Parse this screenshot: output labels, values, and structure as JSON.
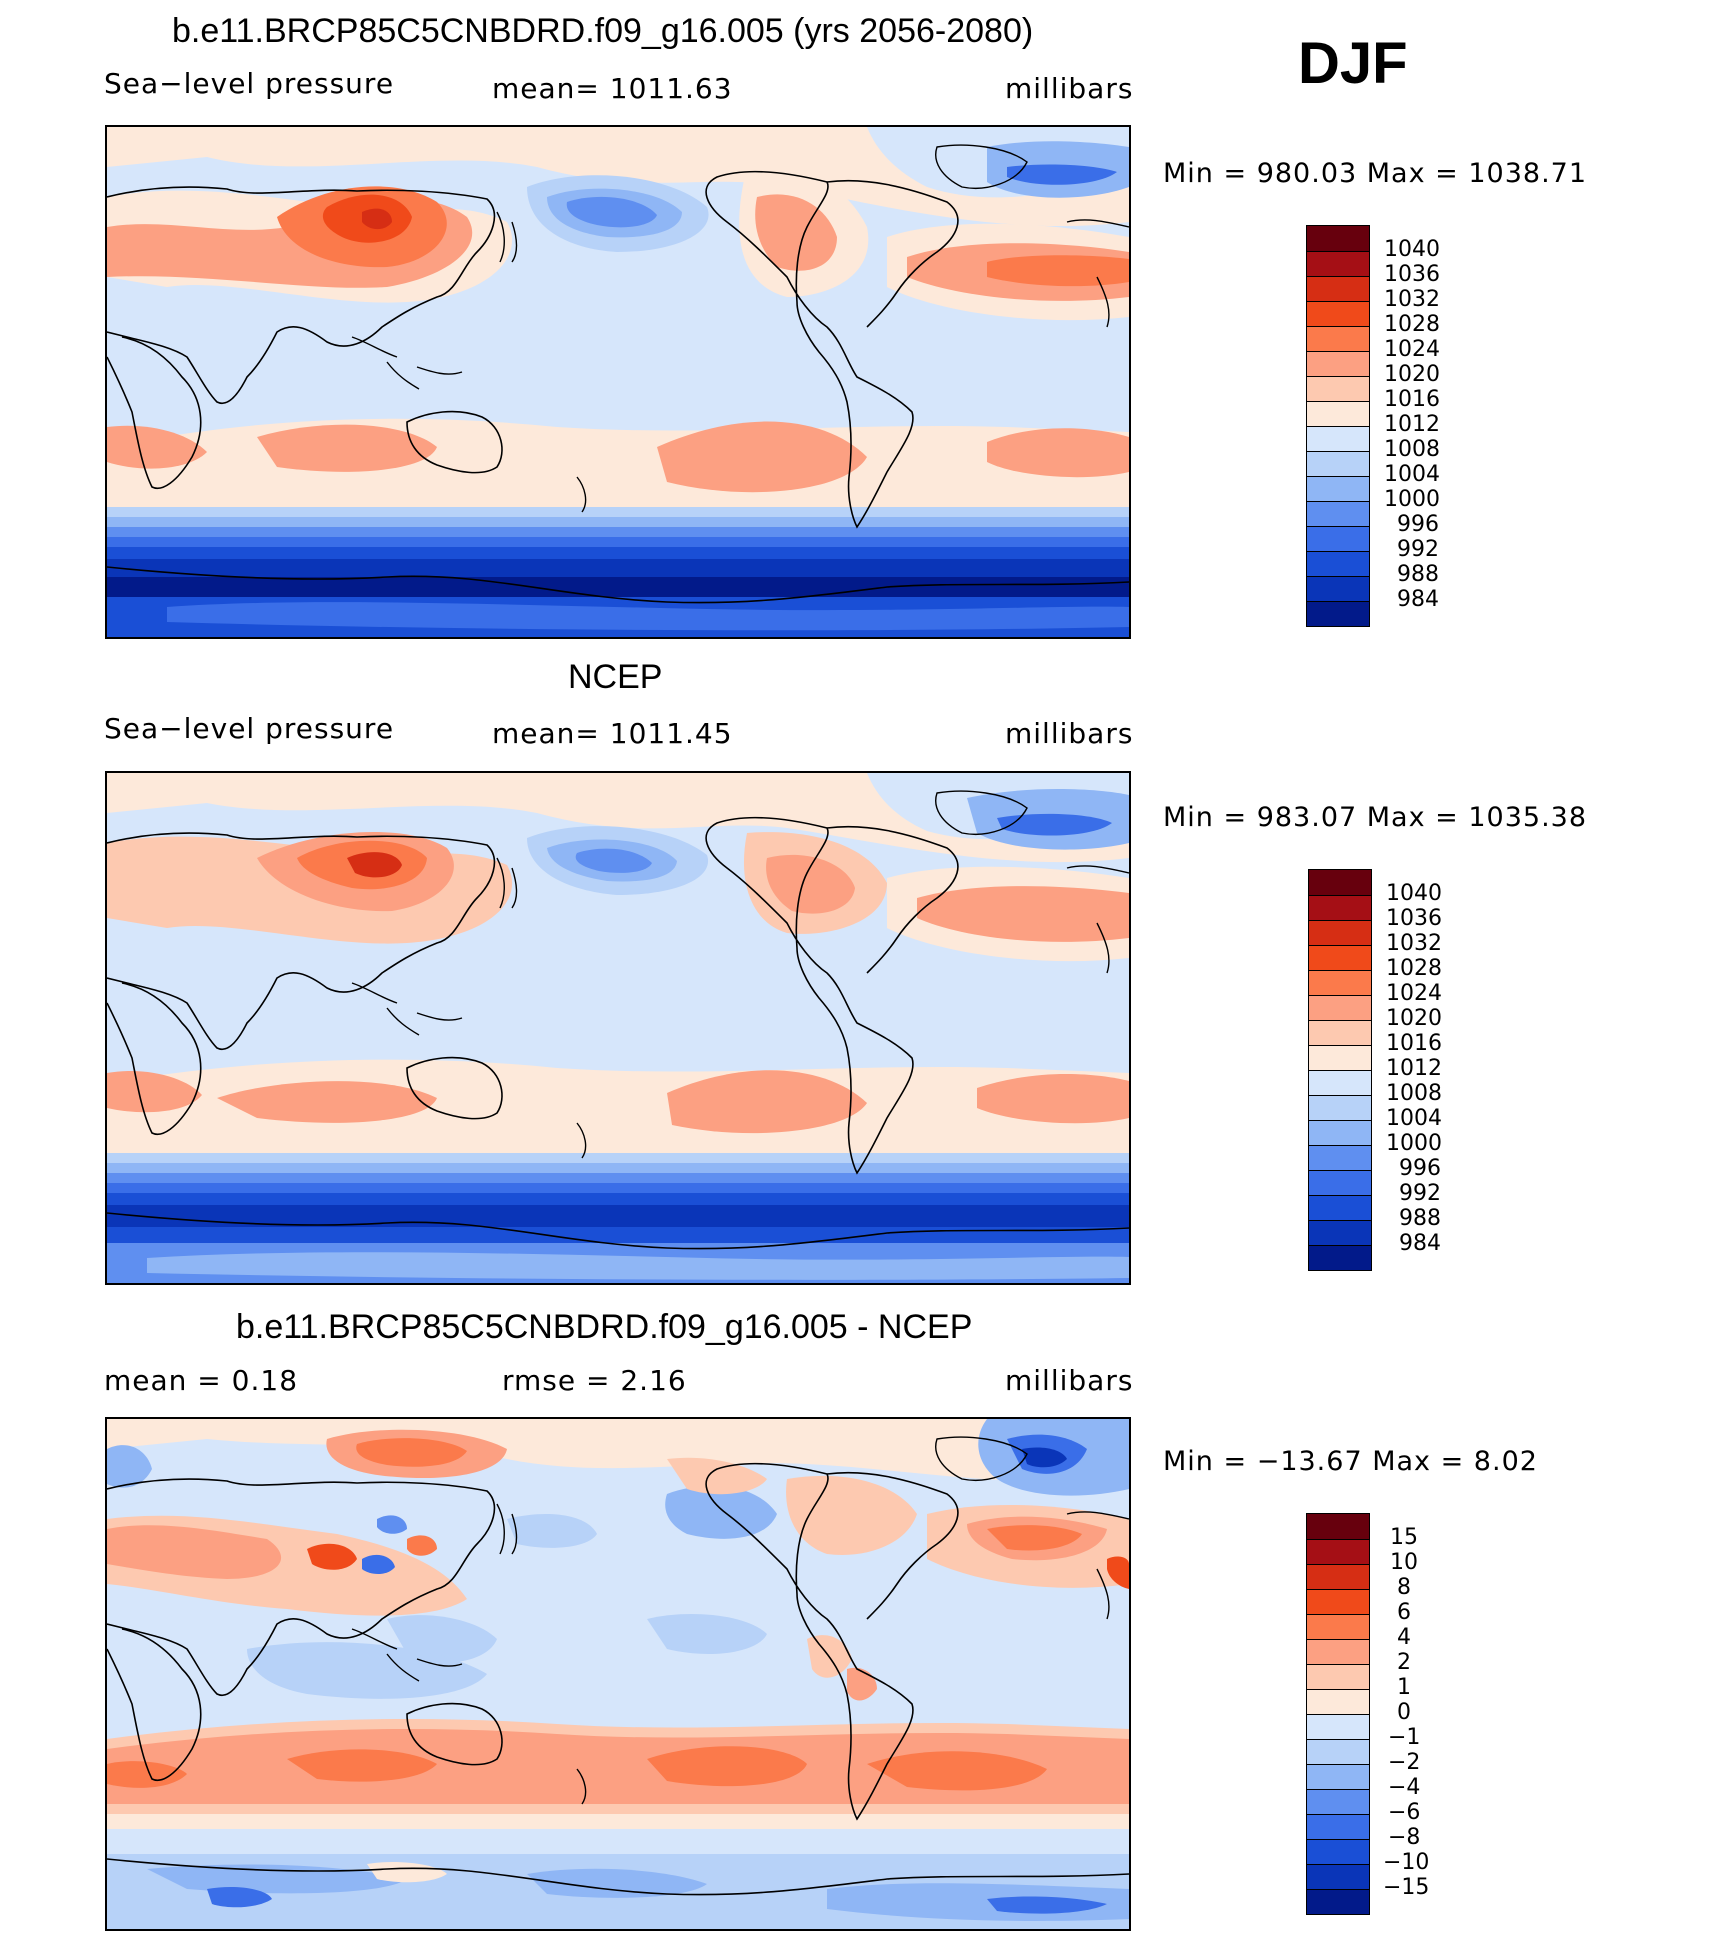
{
  "season": "DJF",
  "panels": [
    {
      "title": "b.e11.BRCP85C5CNBDRD.f09_g16.005 (yrs 2056-2080)",
      "left_label": "Sea−level pressure",
      "mid_label": "mean=  1011.63",
      "right_label": "millibars",
      "minmax": "Min  =  980.03  Max  =  1038.71",
      "levels": [
        "1040",
        "1036",
        "1032",
        "1028",
        "1024",
        "1020",
        "1016",
        "1012",
        "1008",
        "1004",
        "1000",
        "996",
        "992",
        "988",
        "984"
      ]
    },
    {
      "title": "NCEP",
      "left_label": "Sea−level pressure",
      "mid_label": "mean=  1011.45",
      "right_label": "millibars",
      "minmax": "Min  =  983.07  Max  =  1035.38",
      "levels": [
        "1040",
        "1036",
        "1032",
        "1028",
        "1024",
        "1020",
        "1016",
        "1012",
        "1008",
        "1004",
        "1000",
        "996",
        "992",
        "988",
        "984"
      ]
    },
    {
      "title": "b.e11.BRCP85C5CNBDRD.f09_g16.005 - NCEP",
      "left_label": "mean  =     0.18",
      "mid_label": "rmse  =     2.16",
      "right_label": "millibars",
      "minmax": "Min  =  −13.67  Max  =     8.02",
      "levels": [
        "15",
        "10",
        "8",
        "6",
        "4",
        "2",
        "1",
        "0",
        "−1",
        "−2",
        "−4",
        "−6",
        "−8",
        "−10",
        "−15"
      ]
    }
  ],
  "colors": {
    "abs_scale": [
      "#67000d",
      "#a50f15",
      "#d62e14",
      "#f04a1a",
      "#fb7a4b",
      "#fca082",
      "#fdc9b0",
      "#fde9da",
      "#d6e6fb",
      "#b7d2f8",
      "#8fb6f5",
      "#5f8ff0",
      "#3a6ee8",
      "#1a4fd6",
      "#0a35b8",
      "#021a8a"
    ],
    "diff_scale": [
      "#67000d",
      "#a50f15",
      "#d62e14",
      "#f04a1a",
      "#fb7a4b",
      "#fca082",
      "#fdc9b0",
      "#fde9da",
      "#d6e6fb",
      "#b7d2f8",
      "#8fb6f5",
      "#5f8ff0",
      "#3a6ee8",
      "#1a4fd6",
      "#0a35b8",
      "#021a8a"
    ]
  }
}
